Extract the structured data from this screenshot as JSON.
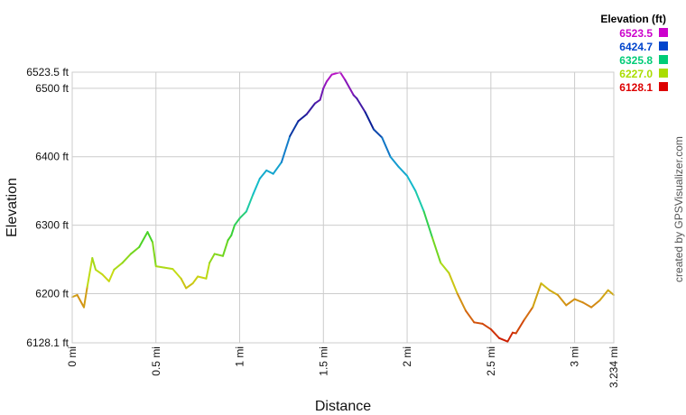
{
  "chart_data": {
    "type": "line",
    "xlabel": "Distance",
    "ylabel": "Elevation",
    "xlim": [
      0,
      3.234
    ],
    "ylim": [
      6128.1,
      6523.5
    ],
    "x_ticks": [
      {
        "value": 0,
        "label": "0 mi"
      },
      {
        "value": 0.5,
        "label": "0.5 mi"
      },
      {
        "value": 1,
        "label": "1 mi"
      },
      {
        "value": 1.5,
        "label": "1.5 mi"
      },
      {
        "value": 2,
        "label": "2 mi"
      },
      {
        "value": 2.5,
        "label": "2.5 mi"
      },
      {
        "value": 3,
        "label": "3 mi"
      },
      {
        "value": 3.234,
        "label": "3.234 mi"
      }
    ],
    "y_ticks": [
      {
        "value": 6128.1,
        "label": "6128.1 ft"
      },
      {
        "value": 6200,
        "label": "6200 ft"
      },
      {
        "value": 6300,
        "label": "6300 ft"
      },
      {
        "value": 6400,
        "label": "6400 ft"
      },
      {
        "value": 6500,
        "label": "6500 ft"
      },
      {
        "value": 6523.5,
        "label": "6523.5 ft"
      }
    ],
    "grid": true,
    "legend": {
      "title": "Elevation (ft)",
      "placement": "top-right",
      "items": [
        {
          "label": "6523.5",
          "color": "#cc00cc"
        },
        {
          "label": "6424.7",
          "color": "#0044cc"
        },
        {
          "label": "6325.8",
          "color": "#00cc77"
        },
        {
          "label": "6227.0",
          "color": "#aadd00"
        },
        {
          "label": "6128.1",
          "color": "#dd0000"
        }
      ]
    },
    "x": [
      0,
      0.03,
      0.07,
      0.09,
      0.12,
      0.14,
      0.18,
      0.22,
      0.25,
      0.3,
      0.35,
      0.4,
      0.45,
      0.48,
      0.5,
      0.55,
      0.6,
      0.65,
      0.68,
      0.72,
      0.75,
      0.8,
      0.82,
      0.85,
      0.9,
      0.93,
      0.95,
      0.97,
      1.0,
      1.04,
      1.08,
      1.12,
      1.16,
      1.2,
      1.25,
      1.3,
      1.35,
      1.4,
      1.45,
      1.48,
      1.5,
      1.52,
      1.55,
      1.6,
      1.63,
      1.68,
      1.7,
      1.75,
      1.8,
      1.85,
      1.9,
      1.95,
      2.0,
      2.05,
      2.1,
      2.15,
      2.2,
      2.25,
      2.3,
      2.35,
      2.4,
      2.45,
      2.5,
      2.55,
      2.6,
      2.63,
      2.65,
      2.7,
      2.75,
      2.8,
      2.85,
      2.9,
      2.95,
      3.0,
      3.05,
      3.1,
      3.15,
      3.2,
      3.234
    ],
    "y": [
      6195,
      6198,
      6180,
      6210,
      6252,
      6235,
      6228,
      6218,
      6235,
      6245,
      6258,
      6268,
      6290,
      6275,
      6240,
      6238,
      6236,
      6222,
      6208,
      6215,
      6225,
      6222,
      6245,
      6258,
      6255,
      6278,
      6285,
      6300,
      6310,
      6320,
      6345,
      6368,
      6380,
      6375,
      6392,
      6430,
      6452,
      6462,
      6478,
      6483,
      6500,
      6510,
      6520,
      6523.5,
      6512,
      6490,
      6485,
      6465,
      6440,
      6428,
      6400,
      6385,
      6372,
      6350,
      6320,
      6282,
      6245,
      6230,
      6200,
      6175,
      6158,
      6156,
      6148,
      6135,
      6130,
      6143,
      6142,
      6162,
      6180,
      6215,
      6205,
      6198,
      6183,
      6192,
      6187,
      6180,
      6190,
      6205,
      6198
    ],
    "watermark": "created by GPSVisualizer.com"
  }
}
